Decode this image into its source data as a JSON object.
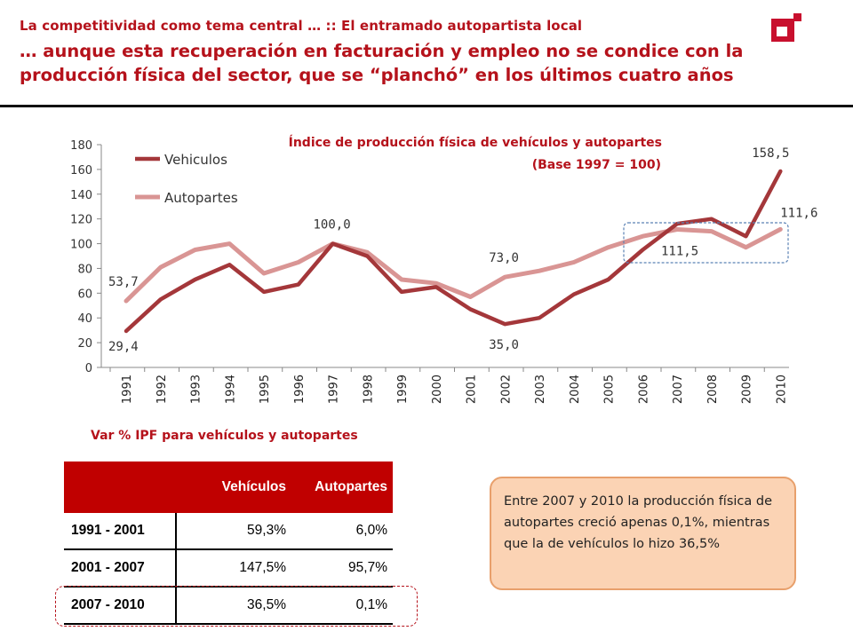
{
  "header": {
    "kicker": "La competitividad como tema central … :: El entramado autopartista local",
    "headline": "… aunque esta recuperación en facturación y empleo no se condice con la producción física del sector, que se “planchó” en los últimos cuatro años"
  },
  "colors": {
    "accent": "#b5121b",
    "vehicles": "#a4373a",
    "parts": "#d99594",
    "table_header": "#c00000",
    "note_bg": "#fbd3b4"
  },
  "logo": {
    "icon": "brand-logo-icon"
  },
  "chart_data": {
    "type": "line",
    "title": "Índice de producción física de vehículos y autopartes",
    "subtitle": "(Base 1997 = 100)",
    "categories": [
      "1991",
      "1992",
      "1993",
      "1994",
      "1995",
      "1996",
      "1997",
      "1998",
      "1999",
      "2000",
      "2001",
      "2002",
      "2003",
      "2004",
      "2005",
      "2006",
      "2007",
      "2008",
      "2009",
      "2010"
    ],
    "ylim": [
      0,
      180
    ],
    "yticks": [
      0,
      20,
      40,
      60,
      80,
      100,
      120,
      140,
      160,
      180
    ],
    "grid": false,
    "legend_position": "top-left",
    "series": [
      {
        "name": "Vehiculos",
        "values": [
          29.4,
          55,
          71,
          83,
          61,
          67,
          100.0,
          90,
          61,
          65,
          47,
          35.0,
          40,
          59,
          71,
          95,
          116,
          120,
          106,
          158.5
        ]
      },
      {
        "name": "Autopartes",
        "values": [
          53.7,
          81,
          95,
          100,
          76,
          85,
          100.0,
          93,
          71,
          68,
          57,
          73.0,
          78,
          85,
          97,
          106,
          111.5,
          110,
          97,
          111.6
        ]
      }
    ],
    "annotations": [
      {
        "text": "53,7",
        "series": 1,
        "index": 0
      },
      {
        "text": "29,4",
        "series": 0,
        "index": 0
      },
      {
        "text": "100,0",
        "series": 0,
        "index": 6
      },
      {
        "text": "73,0",
        "series": 1,
        "index": 11
      },
      {
        "text": "35,0",
        "series": 0,
        "index": 11
      },
      {
        "text": "111,5",
        "series": 1,
        "index": 16
      },
      {
        "text": "158,5",
        "series": 0,
        "index": 19
      },
      {
        "text": "111,6",
        "series": 1,
        "index": 19
      }
    ]
  },
  "table": {
    "caption": "Var % IPF para vehículos y autopartes",
    "headers": [
      "",
      "Vehículos",
      "Autopartes"
    ],
    "rows": [
      {
        "period": "1991 - 2001",
        "vehiculos": "59,3%",
        "autopartes": "6,0%"
      },
      {
        "period": "2001 - 2007",
        "vehiculos": "147,5%",
        "autopartes": "95,7%"
      },
      {
        "period": "2007 - 2010",
        "vehiculos": "36,5%",
        "autopartes": "0,1%"
      }
    ]
  },
  "note": {
    "text": "Entre 2007 y 2010 la producción física de autopartes creció apenas 0,1%, mientras que la  de vehículos lo hizo 36,5%"
  }
}
